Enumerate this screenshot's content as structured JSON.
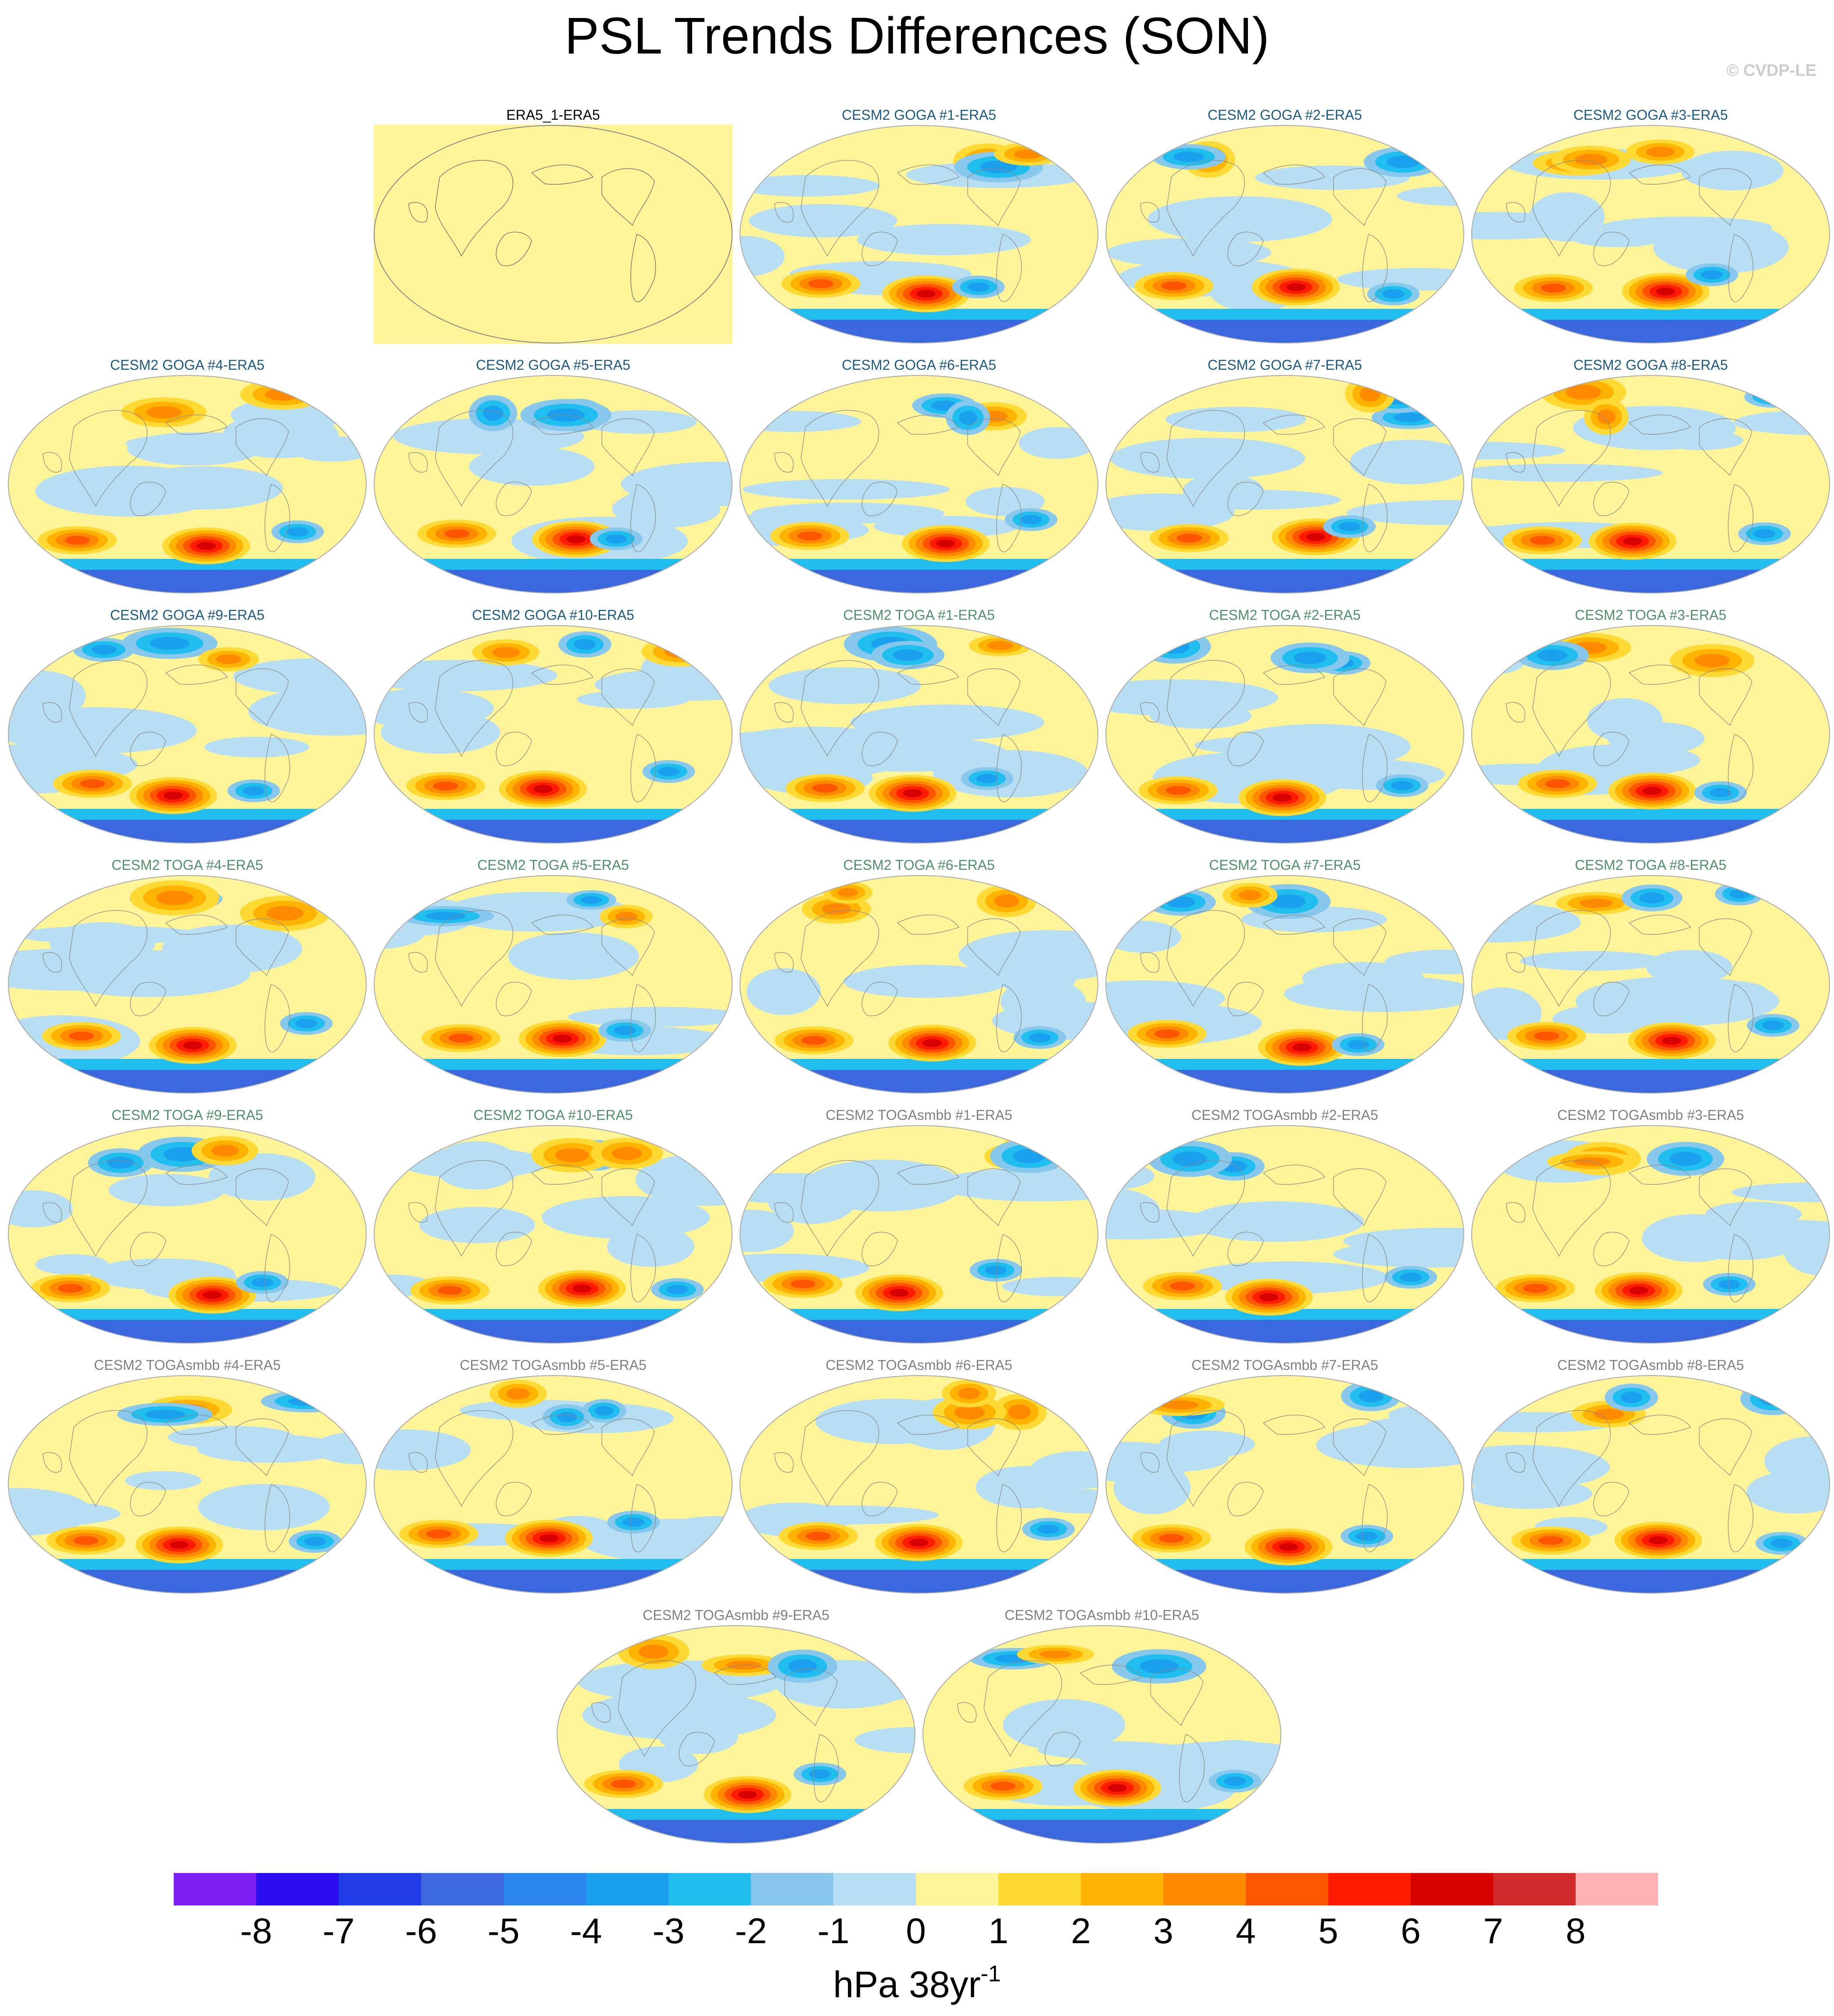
{
  "title": "PSL Trends Differences (SON)",
  "copyright": "© CVDP-LE",
  "units": {
    "main": "hPa 38yr",
    "exponent": "-1"
  },
  "chart_data": {
    "type": "heatmap",
    "title": "PSL Trends Differences (SON)",
    "projection": "global map panels (ocean-centered)",
    "units": "hPa 38yr^-1",
    "colorbar": {
      "tick_labels": [
        "-8",
        "-7",
        "-6",
        "-5",
        "-4",
        "-3",
        "-2",
        "-1",
        "0",
        "1",
        "2",
        "3",
        "4",
        "5",
        "6",
        "7",
        "8"
      ],
      "colors": [
        "#7a1ef2",
        "#2a0ef0",
        "#1f3ce6",
        "#3a67dd",
        "#2a86ee",
        "#1aa0ee",
        "#20beef",
        "#88c8ec",
        "#b7def3",
        "#fff598",
        "#ffd934",
        "#ffb300",
        "#ff8a00",
        "#ff5500",
        "#ff1c00",
        "#d60000",
        "#d22a2a",
        "#ffb2b2"
      ]
    },
    "panels": [
      {
        "title": "ERA5_1-ERA5",
        "group": "ERA5",
        "row": 0,
        "col": 1
      },
      {
        "title": "CESM2 GOGA #1-ERA5",
        "group": "GOGA",
        "row": 0,
        "col": 2
      },
      {
        "title": "CESM2 GOGA #2-ERA5",
        "group": "GOGA",
        "row": 0,
        "col": 3
      },
      {
        "title": "CESM2 GOGA #3-ERA5",
        "group": "GOGA",
        "row": 0,
        "col": 4
      },
      {
        "title": "CESM2 GOGA #4-ERA5",
        "group": "GOGA",
        "row": 1,
        "col": 0
      },
      {
        "title": "CESM2 GOGA #5-ERA5",
        "group": "GOGA",
        "row": 1,
        "col": 1
      },
      {
        "title": "CESM2 GOGA #6-ERA5",
        "group": "GOGA",
        "row": 1,
        "col": 2
      },
      {
        "title": "CESM2 GOGA #7-ERA5",
        "group": "GOGA",
        "row": 1,
        "col": 3
      },
      {
        "title": "CESM2 GOGA #8-ERA5",
        "group": "GOGA",
        "row": 1,
        "col": 4
      },
      {
        "title": "CESM2 GOGA #9-ERA5",
        "group": "GOGA",
        "row": 2,
        "col": 0
      },
      {
        "title": "CESM2 GOGA #10-ERA5",
        "group": "GOGA",
        "row": 2,
        "col": 1
      },
      {
        "title": "CESM2 TOGA #1-ERA5",
        "group": "TOGA",
        "row": 2,
        "col": 2
      },
      {
        "title": "CESM2 TOGA #2-ERA5",
        "group": "TOGA",
        "row": 2,
        "col": 3
      },
      {
        "title": "CESM2 TOGA #3-ERA5",
        "group": "TOGA",
        "row": 2,
        "col": 4
      },
      {
        "title": "CESM2 TOGA #4-ERA5",
        "group": "TOGA",
        "row": 3,
        "col": 0
      },
      {
        "title": "CESM2 TOGA #5-ERA5",
        "group": "TOGA",
        "row": 3,
        "col": 1
      },
      {
        "title": "CESM2 TOGA #6-ERA5",
        "group": "TOGA",
        "row": 3,
        "col": 2
      },
      {
        "title": "CESM2 TOGA #7-ERA5",
        "group": "TOGA",
        "row": 3,
        "col": 3
      },
      {
        "title": "CESM2 TOGA #8-ERA5",
        "group": "TOGA",
        "row": 3,
        "col": 4
      },
      {
        "title": "CESM2 TOGA #9-ERA5",
        "group": "TOGA",
        "row": 4,
        "col": 0
      },
      {
        "title": "CESM2 TOGA #10-ERA5",
        "group": "TOGA",
        "row": 4,
        "col": 1
      },
      {
        "title": "CESM2 TOGAsmbb #1-ERA5",
        "group": "TOGAsmbb",
        "row": 4,
        "col": 2
      },
      {
        "title": "CESM2 TOGAsmbb #2-ERA5",
        "group": "TOGAsmbb",
        "row": 4,
        "col": 3
      },
      {
        "title": "CESM2 TOGAsmbb #3-ERA5",
        "group": "TOGAsmbb",
        "row": 4,
        "col": 4
      },
      {
        "title": "CESM2 TOGAsmbb #4-ERA5",
        "group": "TOGAsmbb",
        "row": 5,
        "col": 0
      },
      {
        "title": "CESM2 TOGAsmbb #5-ERA5",
        "group": "TOGAsmbb",
        "row": 5,
        "col": 1
      },
      {
        "title": "CESM2 TOGAsmbb #6-ERA5",
        "group": "TOGAsmbb",
        "row": 5,
        "col": 2
      },
      {
        "title": "CESM2 TOGAsmbb #7-ERA5",
        "group": "TOGAsmbb",
        "row": 5,
        "col": 3
      },
      {
        "title": "CESM2 TOGAsmbb #8-ERA5",
        "group": "TOGAsmbb",
        "row": 5,
        "col": 4
      },
      {
        "title": "CESM2 TOGAsmbb #9-ERA5",
        "group": "TOGAsmbb",
        "row": 6,
        "col": 1.5
      },
      {
        "title": "CESM2 TOGAsmbb #10-ERA5",
        "group": "TOGAsmbb",
        "row": 6,
        "col": 2.5
      }
    ]
  },
  "title_colors": {
    "ERA5": "#000000",
    "GOGA": "#1c5a82",
    "TOGA": "#4f8f6a",
    "TOGAsmbb": "#808080"
  }
}
